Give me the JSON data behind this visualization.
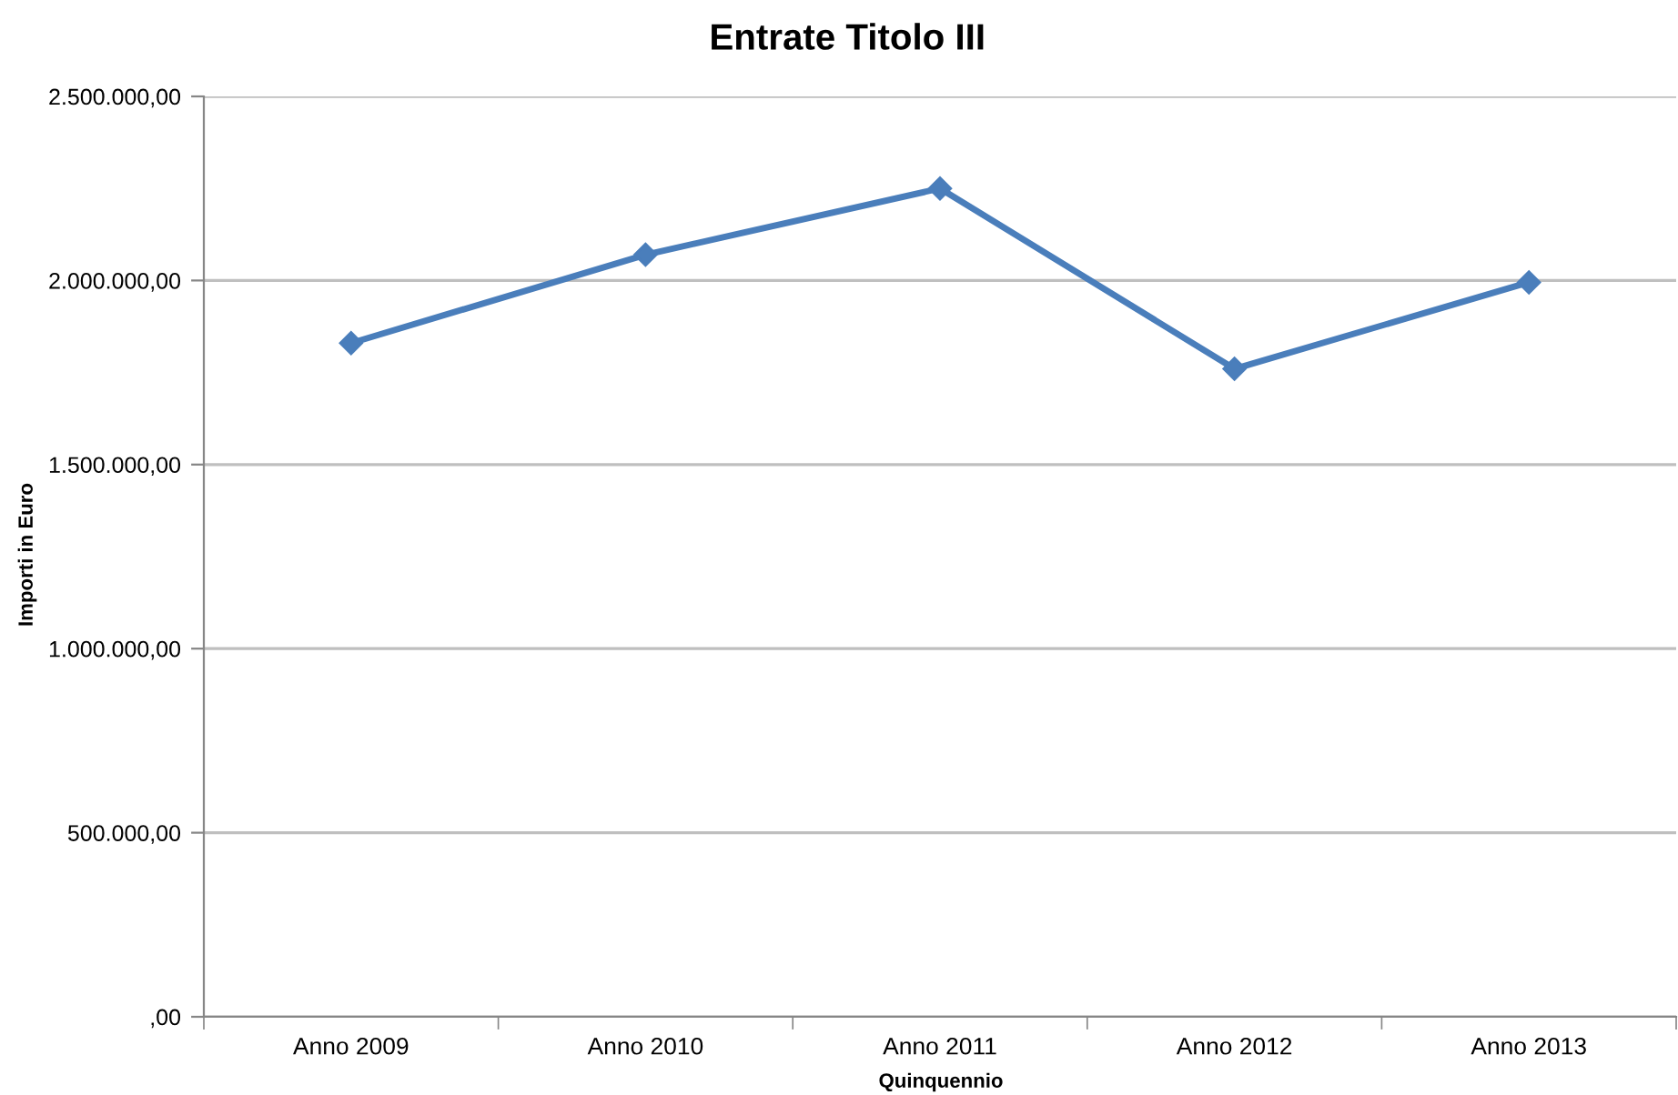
{
  "chart_data": {
    "type": "line",
    "title": "Entrate Titolo III",
    "xlabel": "Quinquennio",
    "ylabel": "Importi in Euro",
    "categories": [
      "Anno 2009",
      "Anno 2010",
      "Anno 2011",
      "Anno 2012",
      "Anno 2013"
    ],
    "series": [
      {
        "color": "#4a7ebb",
        "values": [
          1830000,
          2070000,
          2250000,
          1760000,
          1995000
        ]
      }
    ],
    "ylim": [
      0,
      2500000
    ],
    "yticks": [
      {
        "value": 0,
        "label": ",00"
      },
      {
        "value": 500000,
        "label": "500.000,00"
      },
      {
        "value": 1000000,
        "label": "1.000.000,00"
      },
      {
        "value": 1500000,
        "label": "1.500.000,00"
      },
      {
        "value": 2000000,
        "label": "2.000.000,00"
      },
      {
        "value": 2500000,
        "label": "2.500.000,00"
      }
    ],
    "grid": "y",
    "marker": "diamond",
    "line_style": "solid"
  }
}
